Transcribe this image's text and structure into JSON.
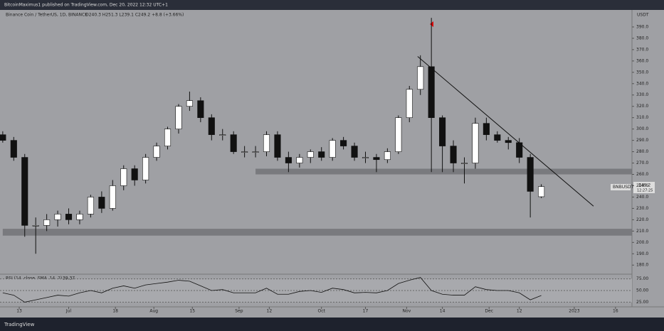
{
  "header": {
    "published": "BitcoinMaximus1 published on TradingView.com, Dec 20, 2022 12:32 UTC+1",
    "symbol": "Binance Coin / TetherUS, 1D, BINANCE",
    "ohlc": "O240.3 H251.3 L239.1 C249.2 +8.8 (+3.66%)",
    "currency": "USDT",
    "ticker": "BNBUSDT",
    "last_price": "249.2",
    "countdown": "12:27:25",
    "rsi_label": "RSI (14, close, SMA, 14, 2)",
    "footer": "TradingView"
  },
  "chart_data": [
    {
      "type": "candlestick",
      "x": [
        "2022-06-07",
        "2022-06-11",
        "2022-06-15",
        "2022-06-19",
        "2022-06-23",
        "2022-06-27",
        "2022-07-01",
        "2022-07-05",
        "2022-07-09",
        "2022-07-13",
        "2022-07-17",
        "2022-07-21",
        "2022-07-25",
        "2022-07-29",
        "2022-08-02",
        "2022-08-06",
        "2022-08-10",
        "2022-08-14",
        "2022-08-18",
        "2022-08-22",
        "2022-08-26",
        "2022-08-30",
        "2022-09-03",
        "2022-09-07",
        "2022-09-11",
        "2022-09-15",
        "2022-09-19",
        "2022-09-23",
        "2022-09-27",
        "2022-10-01",
        "2022-10-05",
        "2022-10-09",
        "2022-10-13",
        "2022-10-17",
        "2022-10-21",
        "2022-10-25",
        "2022-10-29",
        "2022-11-02",
        "2022-11-06",
        "2022-11-10",
        "2022-11-14",
        "2022-11-18",
        "2022-11-22",
        "2022-11-26",
        "2022-11-30",
        "2022-12-04",
        "2022-12-08",
        "2022-12-12",
        "2022-12-16",
        "2022-12-20"
      ],
      "open": [
        295,
        290,
        275,
        215,
        215,
        220,
        225,
        220,
        225,
        240,
        230,
        250,
        265,
        255,
        275,
        285,
        300,
        320,
        325,
        310,
        295,
        295,
        280,
        280,
        280,
        295,
        275,
        270,
        275,
        280,
        275,
        290,
        285,
        275,
        275,
        273,
        280,
        310,
        335,
        355,
        310,
        285,
        270,
        270,
        305,
        295,
        290,
        288,
        275,
        240.3
      ],
      "high": [
        298,
        293,
        278,
        222,
        225,
        228,
        230,
        228,
        242,
        245,
        255,
        268,
        268,
        278,
        288,
        302,
        322,
        333,
        328,
        313,
        300,
        298,
        285,
        285,
        298,
        298,
        280,
        278,
        282,
        284,
        292,
        293,
        288,
        280,
        278,
        283,
        312,
        338,
        365,
        398,
        312,
        290,
        275,
        310,
        310,
        298,
        293,
        292,
        278,
        251.3
      ],
      "low": [
        288,
        272,
        205,
        190,
        210,
        214,
        216,
        216,
        222,
        226,
        228,
        246,
        250,
        252,
        272,
        282,
        296,
        316,
        306,
        290,
        290,
        278,
        275,
        275,
        276,
        272,
        262,
        266,
        270,
        272,
        272,
        282,
        272,
        270,
        262,
        270,
        278,
        306,
        330,
        262,
        262,
        262,
        252,
        265,
        290,
        288,
        282,
        270,
        222,
        239.1
      ],
      "close": [
        290,
        275,
        215,
        215,
        220,
        225,
        220,
        225,
        240,
        230,
        250,
        265,
        255,
        275,
        285,
        300,
        320,
        325,
        310,
        295,
        295,
        280,
        280,
        280,
        295,
        275,
        270,
        275,
        280,
        275,
        290,
        285,
        275,
        275,
        273,
        280,
        310,
        335,
        355,
        310,
        285,
        270,
        270,
        305,
        295,
        290,
        288,
        275,
        245,
        249.2
      ],
      "xlim": [
        "2022-06-06",
        "2023-01-22"
      ],
      "xticks": [
        {
          "value": "2022-06-13",
          "label": "13"
        },
        {
          "value": "2022-07-01",
          "label": "Jul"
        },
        {
          "value": "2022-07-18",
          "label": "18"
        },
        {
          "value": "2022-08-01",
          "label": "Aug"
        },
        {
          "value": "2022-08-15",
          "label": "15"
        },
        {
          "value": "2022-09-01",
          "label": "Sep"
        },
        {
          "value": "2022-09-12",
          "label": "12"
        },
        {
          "value": "2022-10-01",
          "label": "Oct"
        },
        {
          "value": "2022-10-17",
          "label": "17"
        },
        {
          "value": "2022-11-01",
          "label": "Nov"
        },
        {
          "value": "2022-11-14",
          "label": "14"
        },
        {
          "value": "2022-12-01",
          "label": "Dec"
        },
        {
          "value": "2022-12-12",
          "label": "12"
        },
        {
          "value": "2023-01-01",
          "label": "2023"
        },
        {
          "value": "2023-01-16",
          "label": "16"
        }
      ],
      "ylim": [
        172,
        405
      ],
      "yticks": [
        {
          "value": 180,
          "label": "180.0"
        },
        {
          "value": 190,
          "label": "190.0"
        },
        {
          "value": 200,
          "label": "200.0"
        },
        {
          "value": 210,
          "label": "210.0"
        },
        {
          "value": 220,
          "label": "220.0"
        },
        {
          "value": 230,
          "label": "230.0"
        },
        {
          "value": 240,
          "label": "240.0"
        },
        {
          "value": 250,
          "label": "250.0"
        },
        {
          "value": 260,
          "label": "260.0"
        },
        {
          "value": 270,
          "label": "270.0"
        },
        {
          "value": 280,
          "label": "280.0"
        },
        {
          "value": 290,
          "label": "290.0"
        },
        {
          "value": 300,
          "label": "300.0"
        },
        {
          "value": 310,
          "label": "310.0"
        },
        {
          "value": 320,
          "label": "320.0"
        },
        {
          "value": 330,
          "label": "330.0"
        },
        {
          "value": 340,
          "label": "340.0"
        },
        {
          "value": 350,
          "label": "350.0"
        },
        {
          "value": 360,
          "label": "360.0"
        },
        {
          "value": 370,
          "label": "370.0"
        },
        {
          "value": 380,
          "label": "380.0"
        },
        {
          "value": 390,
          "label": "390.0"
        }
      ],
      "up_color": "#ffffff",
      "down_color": "#111111",
      "zones": [
        {
          "low": 260,
          "high": 265,
          "start": "2022-09-07"
        },
        {
          "low": 206,
          "high": 212,
          "start": "2022-06-07"
        }
      ],
      "trendline": {
        "x": [
          "2022-11-05",
          "2023-01-08"
        ],
        "y": [
          364,
          232
        ],
        "color": "#111111"
      }
    },
    {
      "type": "line",
      "x": [
        "2022-06-07",
        "2022-06-11",
        "2022-06-15",
        "2022-06-19",
        "2022-06-23",
        "2022-06-27",
        "2022-07-01",
        "2022-07-05",
        "2022-07-09",
        "2022-07-13",
        "2022-07-17",
        "2022-07-21",
        "2022-07-25",
        "2022-07-29",
        "2022-08-02",
        "2022-08-06",
        "2022-08-10",
        "2022-08-14",
        "2022-08-18",
        "2022-08-22",
        "2022-08-26",
        "2022-08-30",
        "2022-09-03",
        "2022-09-07",
        "2022-09-11",
        "2022-09-15",
        "2022-09-19",
        "2022-09-23",
        "2022-09-27",
        "2022-10-01",
        "2022-10-05",
        "2022-10-09",
        "2022-10-13",
        "2022-10-17",
        "2022-10-21",
        "2022-10-25",
        "2022-10-29",
        "2022-11-02",
        "2022-11-06",
        "2022-11-10",
        "2022-11-14",
        "2022-11-18",
        "2022-11-22",
        "2022-11-26",
        "2022-11-30",
        "2022-12-04",
        "2022-12-08",
        "2022-12-12",
        "2022-12-16",
        "2022-12-20"
      ],
      "values": [
        45,
        40,
        25,
        30,
        35,
        40,
        38,
        45,
        50,
        45,
        55,
        60,
        55,
        62,
        65,
        68,
        72,
        70,
        60,
        50,
        52,
        45,
        45,
        45,
        55,
        42,
        42,
        48,
        50,
        46,
        55,
        52,
        45,
        46,
        45,
        50,
        65,
        72,
        78,
        50,
        42,
        40,
        40,
        58,
        52,
        50,
        50,
        45,
        30,
        39.37
      ],
      "color": "#111111",
      "xlim": [
        "2022-06-06",
        "2023-01-22"
      ],
      "ylim": [
        15,
        85
      ],
      "yticks": [
        {
          "value": 25,
          "label": "25.00"
        },
        {
          "value": 50,
          "label": "50.00"
        },
        {
          "value": 75,
          "label": "75.00"
        }
      ]
    }
  ]
}
